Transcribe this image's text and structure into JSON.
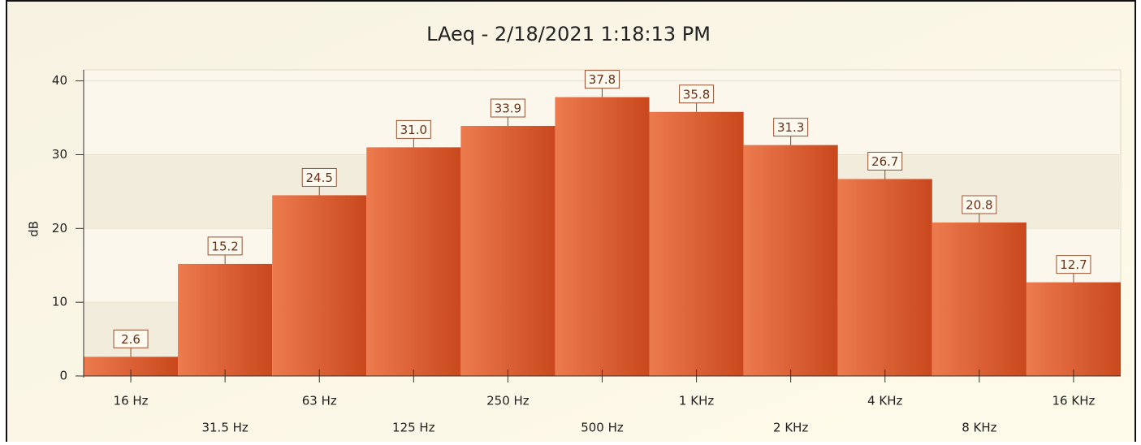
{
  "chart_data": {
    "type": "bar",
    "title": "LAeq  -  2/18/2021 1:18:13 PM",
    "y_label": "dB",
    "categories": [
      "16 Hz",
      "31.5 Hz",
      "63 Hz",
      "125 Hz",
      "250 Hz",
      "500 Hz",
      "1 KHz",
      "2 KHz",
      "4 KHz",
      "8 KHz",
      "16 KHz"
    ],
    "values": [
      2.6,
      15.2,
      24.5,
      31.0,
      33.9,
      37.8,
      35.8,
      31.3,
      26.7,
      20.8,
      12.7
    ],
    "value_labels": [
      "2.6",
      "15.2",
      "24.5",
      "31.0",
      "33.9",
      "37.8",
      "35.8",
      "31.3",
      "26.7",
      "20.8",
      "12.7"
    ],
    "color": "#d9592a",
    "ylim": [
      0,
      41.5
    ],
    "yticks": [
      0,
      10,
      20,
      30,
      40
    ],
    "grid": true
  }
}
